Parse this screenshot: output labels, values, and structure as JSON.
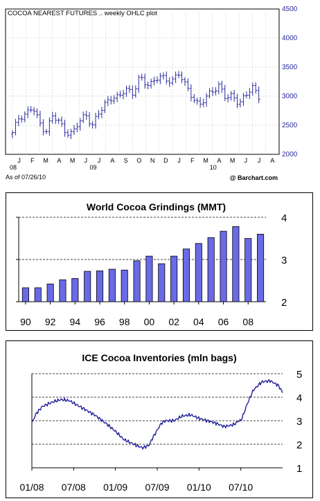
{
  "chart_data": [
    {
      "type": "ohlc",
      "title": "COCOA NEAREST FUTURES .. weekly OHLC plot",
      "footer_left": "As of 07/26/10",
      "footer_right": "@ Barchart.com",
      "ylim": [
        2000,
        4500
      ],
      "yticks": [
        "2000",
        "2500",
        "3000",
        "3500",
        "4000",
        "4500"
      ],
      "month_labels": [
        "J",
        "F",
        "M",
        "A",
        "M",
        "J",
        "J",
        "A",
        "S",
        "O",
        "N",
        "D",
        "J",
        "F",
        "M",
        "A",
        "M",
        "J",
        "J",
        "A"
      ],
      "year_labels": [
        {
          "text": "08",
          "at": 0
        },
        {
          "text": "09",
          "at": 6
        },
        {
          "text": "10",
          "at": 15
        }
      ],
      "color": "#2a2a9c",
      "anchors": [
        [
          0,
          2350
        ],
        [
          0.5,
          2650
        ],
        [
          1,
          2700
        ],
        [
          1.5,
          2800
        ],
        [
          2,
          2550
        ],
        [
          2.5,
          2400
        ],
        [
          3,
          2650
        ],
        [
          3.5,
          2550
        ],
        [
          4,
          2400
        ],
        [
          4.5,
          2350
        ],
        [
          5,
          2550
        ],
        [
          5.5,
          2700
        ],
        [
          6,
          2500
        ],
        [
          6.5,
          2700
        ],
        [
          7,
          2900
        ],
        [
          7.5,
          3000
        ],
        [
          8,
          2950
        ],
        [
          8.5,
          3150
        ],
        [
          9,
          3050
        ],
        [
          9.5,
          3300
        ],
        [
          10,
          3200
        ],
        [
          10.5,
          3250
        ],
        [
          11,
          3350
        ],
        [
          11.5,
          3250
        ],
        [
          12,
          3300
        ],
        [
          12.5,
          3400
        ],
        [
          13,
          3150
        ],
        [
          13.5,
          3000
        ],
        [
          14,
          2850
        ],
        [
          14.5,
          2950
        ],
        [
          15,
          3100
        ],
        [
          15.5,
          3200
        ],
        [
          16,
          2950
        ],
        [
          16.5,
          3000
        ],
        [
          17,
          2900
        ],
        [
          17.5,
          3000
        ],
        [
          18,
          3150
        ],
        [
          18.5,
          3000
        ]
      ]
    },
    {
      "type": "bar",
      "title": "World Cocoa Grindings (MMT)",
      "x": [
        1990,
        1991,
        1992,
        1993,
        1994,
        1995,
        1996,
        1997,
        1998,
        1999,
        2000,
        2001,
        2002,
        2003,
        2004,
        2005,
        2006,
        2007,
        2008,
        2009
      ],
      "values": [
        2.33,
        2.33,
        2.42,
        2.52,
        2.55,
        2.72,
        2.73,
        2.77,
        2.75,
        2.97,
        3.08,
        2.9,
        3.08,
        3.25,
        3.38,
        3.52,
        3.67,
        3.78,
        3.5,
        3.6
      ],
      "tick_labels": [
        "90",
        "92",
        "94",
        "96",
        "98",
        "00",
        "02",
        "04",
        "06",
        "08"
      ],
      "ylim": [
        2,
        4
      ],
      "yticks": [
        "2",
        "3",
        "4"
      ],
      "bar_color": "#6a6ae6"
    },
    {
      "type": "line",
      "title": "ICE Cocoa Inventories (mln bags)",
      "xticks": [
        "01/08",
        "07/08",
        "01/09",
        "07/09",
        "01/10",
        "07/10"
      ],
      "ylim": [
        1,
        5
      ],
      "yticks": [
        "1",
        "2",
        "3",
        "4",
        "5"
      ],
      "line_color": "#1f1f99",
      "x": [
        0,
        0.1,
        0.25,
        0.5,
        0.7,
        0.9,
        1.0,
        1.2,
        1.5,
        1.8,
        2.0,
        2.2,
        2.5,
        2.65,
        2.8,
        2.9,
        3.1,
        3.2,
        3.4,
        3.6,
        3.8,
        4.0,
        4.2,
        4.4,
        4.6,
        4.75,
        4.85,
        4.95,
        5.0,
        5.05,
        5.15,
        5.3,
        5.5,
        5.7,
        5.9,
        6.0
      ],
      "values": [
        2.9,
        3.3,
        3.6,
        3.8,
        3.9,
        3.85,
        3.75,
        3.55,
        3.25,
        2.85,
        2.55,
        2.2,
        1.95,
        1.85,
        1.95,
        2.3,
        2.9,
        3.0,
        3.0,
        3.2,
        3.25,
        3.1,
        3.0,
        2.9,
        2.75,
        2.8,
        2.85,
        3.0,
        3.0,
        3.2,
        3.7,
        4.3,
        4.65,
        4.7,
        4.5,
        4.2
      ]
    }
  ]
}
